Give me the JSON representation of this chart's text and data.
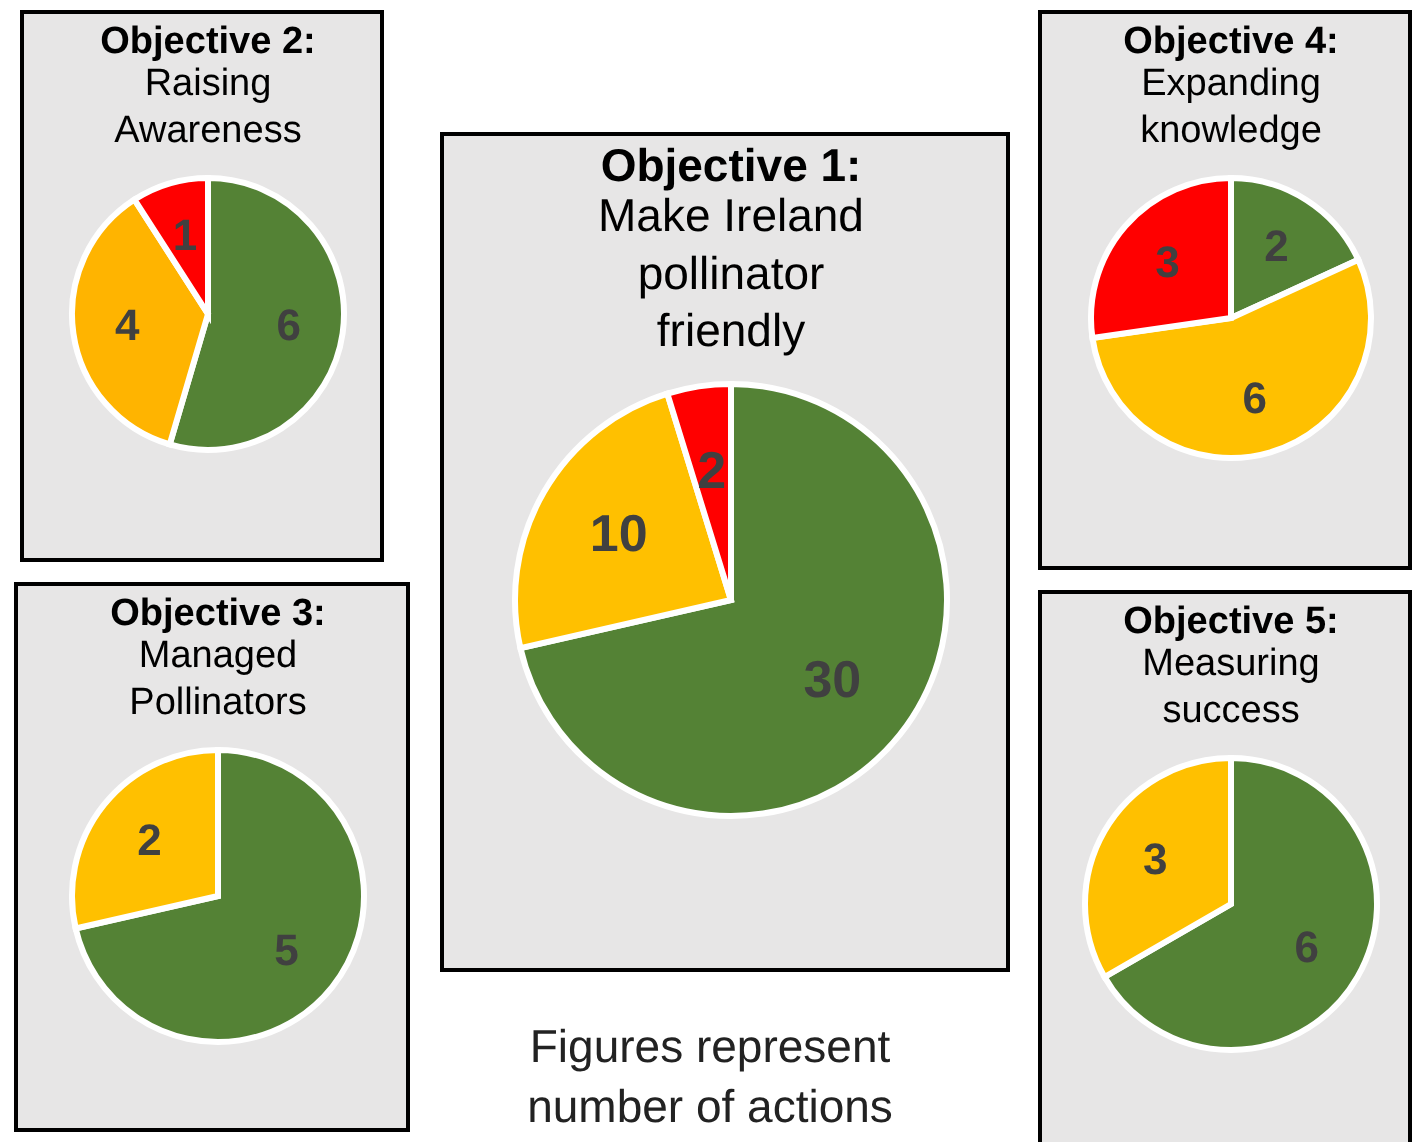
{
  "chart_data": [
    {
      "type": "pie",
      "title": "Objective 2:",
      "subtitle": "Raising Awareness",
      "categories": [
        null,
        null,
        null
      ],
      "values": [
        6,
        4,
        1
      ],
      "colors": [
        "#548235",
        "#ffb400",
        "#ff0000"
      ],
      "data_labels": true
    },
    {
      "type": "pie",
      "title": "Objective 1:",
      "subtitle": "Make Ireland pollinator friendly",
      "categories": [
        null,
        null,
        null
      ],
      "values": [
        30,
        10,
        2
      ],
      "colors": [
        "#548235",
        "#ffc000",
        "#ff0000"
      ],
      "data_labels": true,
      "annotations": [
        "Figures represent number of actions"
      ]
    },
    {
      "type": "pie",
      "title": "Objective 4:",
      "subtitle": "Expanding knowledge",
      "categories": [
        null,
        null,
        null
      ],
      "values": [
        2,
        6,
        3
      ],
      "colors": [
        "#548235",
        "#ffc000",
        "#ff0000"
      ],
      "data_labels": true
    },
    {
      "type": "pie",
      "title": "Objective 3:",
      "subtitle": "Managed Pollinators",
      "categories": [
        null,
        null
      ],
      "values": [
        5,
        2
      ],
      "colors": [
        "#548235",
        "#ffc000"
      ],
      "data_labels": true
    },
    {
      "type": "pie",
      "title": "Objective 5:",
      "subtitle": "Measuring success",
      "categories": [
        null,
        null
      ],
      "values": [
        6,
        3
      ],
      "colors": [
        "#548235",
        "#ffc000"
      ],
      "data_labels": true
    }
  ]
}
